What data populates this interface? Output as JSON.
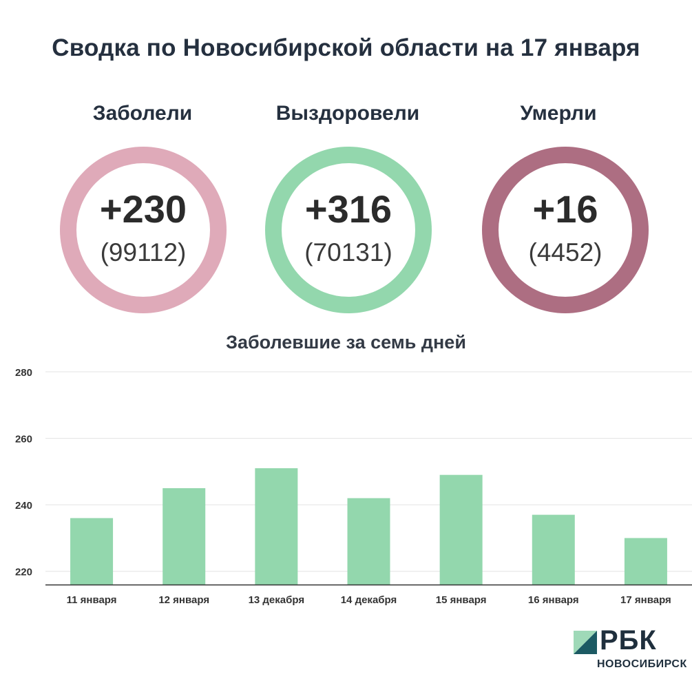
{
  "title": "Сводка по Новосибирской области на 17 января",
  "stats": [
    {
      "label": "Заболели",
      "delta": "+230",
      "total": "(99112)",
      "color": "#dfaab9"
    },
    {
      "label": "Выздоровели",
      "delta": "+316",
      "total": "(70131)",
      "color": "#93d7ad"
    },
    {
      "label": "Умерли",
      "delta": "+16",
      "total": "(4452)",
      "color": "#ad6e82"
    }
  ],
  "chart_data": {
    "type": "bar",
    "title": "Заболевшие за семь дней",
    "categories": [
      "11 января",
      "12 января",
      "13 декабря",
      "14 декабря",
      "15 января",
      "16 января",
      "17 января"
    ],
    "values": [
      236,
      245,
      251,
      242,
      249,
      237,
      230
    ],
    "ylim": [
      216,
      280
    ],
    "yticks": [
      220,
      240,
      260,
      280
    ],
    "grid": true,
    "bar_color": "#93d7ad"
  },
  "logo": {
    "brand": "РБК",
    "sub": "НОВОСИБИРСК"
  }
}
